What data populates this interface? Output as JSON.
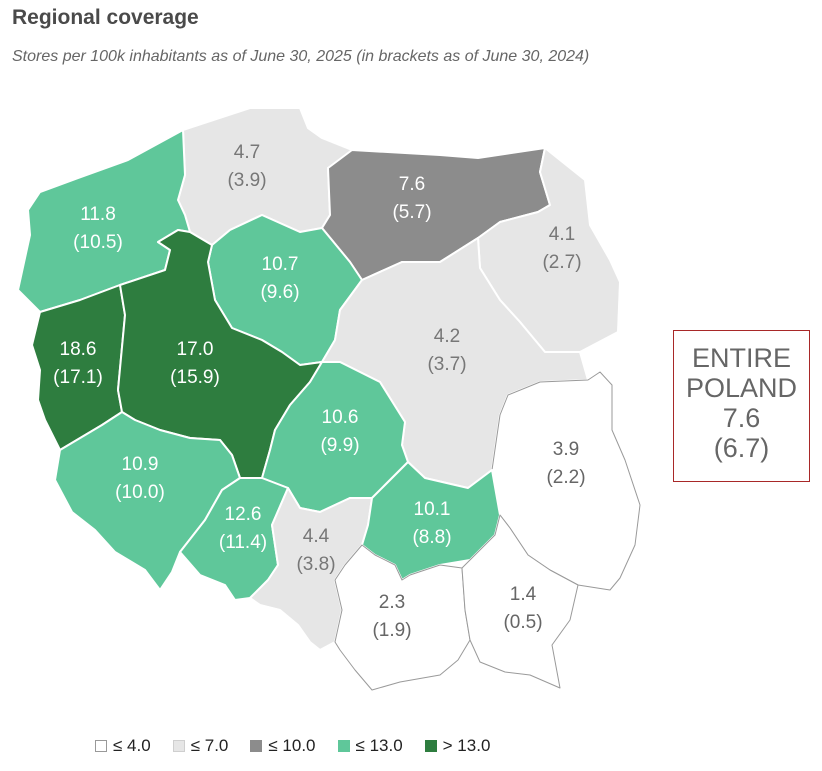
{
  "title": "Regional coverage",
  "subtitle": "Stores per 100k inhabitants as of June 30, 2025 (in brackets as of June 30, 2024)",
  "colors": {
    "c0": "#ffffff",
    "c1": "#e6e6e6",
    "c2": "#8c8c8c",
    "c3": "#5fc79a",
    "c4": "#2e7d3f"
  },
  "summary": {
    "line1": "ENTIRE",
    "line2": "POLAND",
    "value": "7.6",
    "previous": "(6.7)"
  },
  "legend": [
    {
      "label": "≤ 4.0",
      "cls": "c0"
    },
    {
      "label": "≤ 7.0",
      "cls": "c1"
    },
    {
      "label": "≤ 10.0",
      "cls": "c2"
    },
    {
      "label": "≤ 13.0",
      "cls": "c3"
    },
    {
      "label": "> 13.0",
      "cls": "c4"
    }
  ],
  "regions": [
    {
      "value": "4.7",
      "previous": "(3.9)",
      "cls": "c1"
    },
    {
      "value": "7.6",
      "previous": "(5.7)",
      "cls": "c2"
    },
    {
      "value": "11.8",
      "previous": "(10.5)",
      "cls": "c3"
    },
    {
      "value": "10.7",
      "previous": "(9.6)",
      "cls": "c3"
    },
    {
      "value": "4.1",
      "previous": "(2.7)",
      "cls": "c1"
    },
    {
      "value": "4.2",
      "previous": "(3.7)",
      "cls": "c1"
    },
    {
      "value": "18.6",
      "previous": "(17.1)",
      "cls": "c4"
    },
    {
      "value": "17.0",
      "previous": "(15.9)",
      "cls": "c4"
    },
    {
      "value": "10.6",
      "previous": "(9.9)",
      "cls": "c3"
    },
    {
      "value": "3.9",
      "previous": "(2.2)",
      "cls": "c0"
    },
    {
      "value": "10.9",
      "previous": "(10.0)",
      "cls": "c3"
    },
    {
      "value": "12.6",
      "previous": "(11.4)",
      "cls": "c3"
    },
    {
      "value": "4.4",
      "previous": "(3.8)",
      "cls": "c1"
    },
    {
      "value": "10.1",
      "previous": "(8.8)",
      "cls": "c3"
    },
    {
      "value": "2.3",
      "previous": "(1.9)",
      "cls": "c0"
    },
    {
      "value": "1.4",
      "previous": "(0.5)",
      "cls": "c0"
    }
  ]
}
